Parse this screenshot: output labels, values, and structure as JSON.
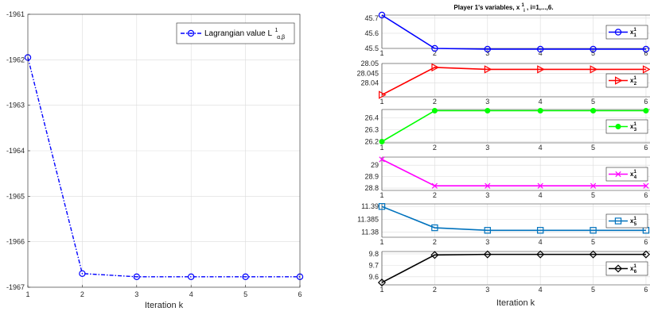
{
  "chart_data": [
    {
      "type": "line",
      "x": [
        1,
        2,
        3,
        4,
        5,
        6
      ],
      "series": [
        {
          "name": "Lagrangian value L",
          "name_sup": "1",
          "name_sub": "α,β",
          "values": [
            -1961.95,
            -1966.7,
            -1966.77,
            -1966.77,
            -1966.77,
            -1966.77
          ],
          "color": "#0000ff",
          "marker": "circle",
          "line": "dashdot"
        }
      ],
      "xlabel": "Iteration k",
      "xlim": [
        1,
        6
      ],
      "ylim": [
        -1967,
        -1961
      ],
      "xticks": [
        "1",
        "2",
        "3",
        "4",
        "5",
        "6"
      ],
      "yticks": [
        "-1961",
        "-1962",
        "-1963",
        "-1964",
        "-1965",
        "-1966",
        "-1967"
      ],
      "grid": true,
      "legend": "top-right"
    },
    {
      "type": "line",
      "title_main": "Player 1's variables, x",
      "title_sup": "1",
      "title_sub": "i",
      "title_tail": ", i=1,...,6.",
      "xlabel": "Iteration k",
      "x": [
        1,
        2,
        3,
        4,
        5,
        6
      ],
      "xticks": [
        "1",
        "2",
        "3",
        "4",
        "5",
        "6"
      ],
      "grid": true,
      "legend": "right",
      "panels": [
        {
          "name": "x",
          "sup": "1",
          "sub": "1",
          "color": "#0000ff",
          "marker": "circle",
          "ylim": [
            45.5,
            45.72
          ],
          "yticks": [
            "45.7",
            "45.6",
            "45.5"
          ],
          "ytick_values": [
            45.7,
            45.6,
            45.5
          ],
          "values": [
            45.72,
            45.5,
            45.495,
            45.495,
            45.495,
            45.495
          ]
        },
        {
          "name": "x",
          "sup": "1",
          "sub": "2",
          "color": "#ff0000",
          "marker": "triangle-right",
          "ylim": [
            28.033,
            28.05
          ],
          "yticks": [
            "28.05",
            "28.045",
            "28.04"
          ],
          "ytick_values": [
            28.05,
            28.045,
            28.04
          ],
          "values": [
            28.034,
            28.048,
            28.047,
            28.047,
            28.047,
            28.047
          ]
        },
        {
          "name": "x",
          "sup": "1",
          "sub": "3",
          "color": "#00ff00",
          "marker": "filled-circle",
          "ylim": [
            26.19,
            26.47
          ],
          "yticks": [
            "26.4",
            "26.3",
            "26.2"
          ],
          "ytick_values": [
            26.4,
            26.3,
            26.2
          ],
          "values": [
            26.2,
            26.46,
            26.46,
            26.46,
            26.46,
            26.46
          ]
        },
        {
          "name": "x",
          "sup": "1",
          "sub": "4",
          "color": "#ff00ff",
          "marker": "x",
          "ylim": [
            28.78,
            29.07
          ],
          "yticks": [
            "29",
            "28.9",
            "28.8"
          ],
          "ytick_values": [
            29.0,
            28.9,
            28.8
          ],
          "values": [
            29.05,
            28.82,
            28.82,
            28.82,
            28.82,
            28.82
          ]
        },
        {
          "name": "x",
          "sup": "1",
          "sub": "5",
          "color": "#0072bd",
          "marker": "square",
          "ylim": [
            11.378,
            11.391
          ],
          "yticks": [
            "11.39",
            "11.385",
            "11.38"
          ],
          "ytick_values": [
            11.39,
            11.385,
            11.38
          ],
          "values": [
            11.39,
            11.3817,
            11.3807,
            11.3807,
            11.3807,
            11.3807
          ]
        },
        {
          "name": "x",
          "sup": "1",
          "sub": "6",
          "color": "#000000",
          "marker": "diamond",
          "ylim": [
            9.53,
            9.82
          ],
          "yticks": [
            "9.8",
            "9.7",
            "9.6"
          ],
          "ytick_values": [
            9.8,
            9.7,
            9.6
          ],
          "values": [
            9.55,
            9.79,
            9.795,
            9.795,
            9.795,
            9.795
          ]
        }
      ]
    }
  ]
}
